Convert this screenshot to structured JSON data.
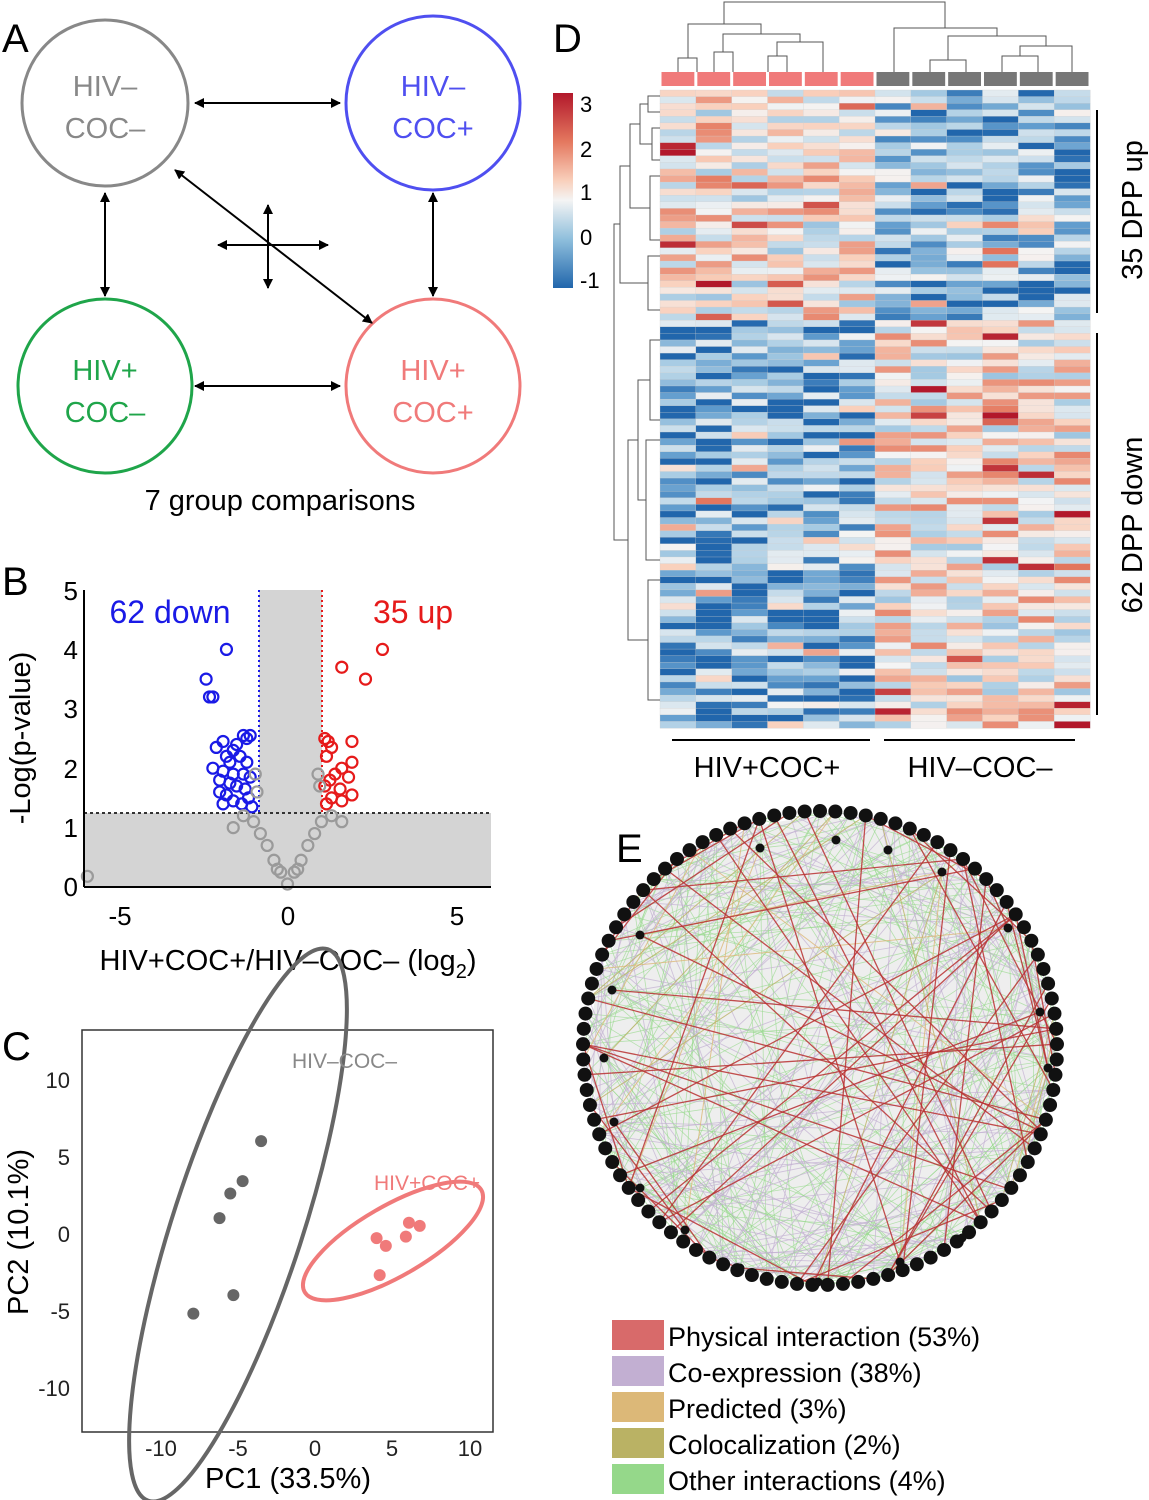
{
  "panels": {
    "A": {
      "label": "A",
      "groups": [
        {
          "line1": "HIV–",
          "line2": "COC–",
          "color": "#888888"
        },
        {
          "line1": "HIV–",
          "line2": "COC+",
          "color": "#4f4ff0"
        },
        {
          "line1": "HIV+",
          "line2": "COC–",
          "color": "#1fa54a"
        },
        {
          "line1": "HIV+",
          "line2": "COC+",
          "color": "#f07a7a"
        }
      ],
      "caption": "7 group comparisons"
    },
    "B": {
      "label": "B",
      "down_label": "62 down",
      "up_label": "35 up",
      "down_color": "#1a1ae6",
      "up_color": "#e61a1a",
      "ns_color": "#9a9a9a",
      "ylabel": "-Log(p-value)",
      "xlabel_main": "HIV+COC+/HIV–COC– (log",
      "xlabel_sub": "2",
      "xlabel_end": ")",
      "x_ticks": [
        "-5",
        "0",
        "5"
      ],
      "y_ticks": [
        "0",
        "1",
        "2",
        "3",
        "4",
        "5"
      ]
    },
    "C": {
      "label": "C",
      "xlabel": "PC1 (33.5%)",
      "ylabel": "PC2 (10.1%)",
      "x_ticks": [
        "-10",
        "-5",
        "0",
        "5",
        "10"
      ],
      "y_ticks": [
        "10",
        "5",
        "0",
        "-5",
        "-10"
      ],
      "group_labels": [
        {
          "text": "HIV–COC–",
          "color": "#888888"
        },
        {
          "text": "HIV+COC+",
          "color": "#f07a7a"
        }
      ]
    },
    "D": {
      "label": "D",
      "scale_ticks": [
        "3",
        "2",
        "1",
        "0",
        "-1"
      ],
      "row_group_up": "35 DPP up",
      "row_group_down": "62 DPP down",
      "col_group_left": "HIV+COC+",
      "col_group_right": "HIV–COC–",
      "col_colors": [
        "#f07a7a",
        "#777777"
      ]
    },
    "E": {
      "label": "E",
      "legend": [
        {
          "label": "Physical interaction (53%)",
          "color": "#d86a6a"
        },
        {
          "label": "Co-expression (38%)",
          "color": "#c2afd2"
        },
        {
          "label": "Predicted (3%)",
          "color": "#dcb878"
        },
        {
          "label": "Colocalization (2%)",
          "color": "#bab264"
        },
        {
          "label": "Other interactions (4%)",
          "color": "#95d88a"
        }
      ]
    }
  },
  "chart_data": [
    {
      "type": "scatter",
      "panel": "B",
      "xlabel": "HIV+COC+/HIV–COC– (log2)",
      "ylabel": "-Log(p-value)",
      "xlim": [
        -6,
        6
      ],
      "ylim": [
        0,
        5
      ],
      "x_ticks": [
        -5,
        0,
        5
      ],
      "y_ticks": [
        0,
        1,
        2,
        3,
        4,
        5
      ],
      "fold_change_threshold": 1,
      "p_threshold": 1.3,
      "annotations": [
        "62 down",
        "35 up"
      ],
      "series": [
        {
          "points": [
            [
              -1.8,
              4.0
            ],
            [
              -2.4,
              3.5
            ],
            [
              -2.3,
              3.2
            ],
            [
              -2.2,
              3.2
            ],
            [
              -1.1,
              2.55
            ],
            [
              -1.3,
              2.55
            ],
            [
              -1.2,
              2.5
            ],
            [
              -1.5,
              2.4
            ],
            [
              -1.9,
              2.45
            ],
            [
              -1.6,
              2.3
            ],
            [
              -1.4,
              2.2
            ],
            [
              -1.8,
              2.2
            ],
            [
              -2.1,
              2.35
            ],
            [
              -1.7,
              2.1
            ],
            [
              -1.2,
              2.1
            ],
            [
              -2.2,
              2.0
            ],
            [
              -1.9,
              1.95
            ],
            [
              -1.6,
              1.9
            ],
            [
              -1.3,
              1.9
            ],
            [
              -1.1,
              1.85
            ],
            [
              -2.0,
              1.8
            ],
            [
              -1.7,
              1.75
            ],
            [
              -1.5,
              1.7
            ],
            [
              -1.25,
              1.65
            ],
            [
              -2.0,
              1.6
            ],
            [
              -1.8,
              1.55
            ],
            [
              -1.15,
              1.5
            ],
            [
              -1.6,
              1.45
            ],
            [
              -1.9,
              1.4
            ],
            [
              -1.35,
              1.4
            ],
            [
              -1.05,
              1.35
            ]
          ]
        },
        {
          "points": [
            [
              2.8,
              4.0
            ],
            [
              1.6,
              3.7
            ],
            [
              2.3,
              3.5
            ],
            [
              1.1,
              2.5
            ],
            [
              1.2,
              2.45
            ],
            [
              1.9,
              2.45
            ],
            [
              1.3,
              2.35
            ],
            [
              1.15,
              2.2
            ],
            [
              1.9,
              2.1
            ],
            [
              1.6,
              2.0
            ],
            [
              1.4,
              1.9
            ],
            [
              1.8,
              1.85
            ],
            [
              1.25,
              1.8
            ],
            [
              1.1,
              1.7
            ],
            [
              1.55,
              1.65
            ],
            [
              1.9,
              1.55
            ],
            [
              1.3,
              1.5
            ],
            [
              1.6,
              1.45
            ],
            [
              1.15,
              1.4
            ]
          ]
        },
        {
          "points": [
            [
              -5.9,
              0.18
            ],
            [
              -1.3,
              1.2
            ],
            [
              -1.0,
              1.1
            ],
            [
              -0.8,
              0.9
            ],
            [
              -0.6,
              0.7
            ],
            [
              -0.4,
              0.45
            ],
            [
              -0.2,
              0.25
            ],
            [
              0.0,
              0.05
            ],
            [
              0.2,
              0.25
            ],
            [
              0.4,
              0.45
            ],
            [
              0.6,
              0.7
            ],
            [
              0.8,
              0.9
            ],
            [
              1.0,
              1.1
            ],
            [
              1.3,
              1.2
            ],
            [
              -0.95,
              1.9
            ],
            [
              0.9,
              1.9
            ],
            [
              0.95,
              1.7
            ],
            [
              -0.9,
              1.6
            ],
            [
              1.6,
              1.1
            ],
            [
              -1.6,
              1.0
            ],
            [
              0.3,
              0.3
            ],
            [
              -0.3,
              0.3
            ]
          ]
        }
      ]
    },
    {
      "type": "scatter",
      "panel": "C",
      "xlabel": "PC1 (33.5%)",
      "ylabel": "PC2 (10.1%)",
      "xlim": [
        -15,
        15
      ],
      "ylim": [
        -12,
        13
      ],
      "x_ticks": [
        -10,
        -5,
        0,
        5,
        10
      ],
      "y_ticks": [
        -10,
        -5,
        0,
        5,
        10
      ],
      "series": [
        {
          "name": "HIV–COC–",
          "points": [
            [
              -3.5,
              5.9
            ],
            [
              -4.7,
              3.3
            ],
            [
              -5.5,
              2.5
            ],
            [
              -6.2,
              0.9
            ],
            [
              -5.3,
              -4.1
            ],
            [
              -7.9,
              -5.3
            ]
          ]
        },
        {
          "name": "HIV+COC+",
          "points": [
            [
              4.0,
              -0.4
            ],
            [
              4.6,
              -0.9
            ],
            [
              6.1,
              0.6
            ],
            [
              6.8,
              0.4
            ],
            [
              5.9,
              -0.3
            ],
            [
              4.2,
              -2.8
            ]
          ]
        }
      ]
    },
    {
      "type": "heatmap",
      "panel": "D",
      "color_scale": [
        -1,
        3
      ],
      "rows_up": 35,
      "rows_down": 62,
      "columns": 12,
      "column_groups": [
        "HIV+COC+",
        "HIV+COC+",
        "HIV+COC+",
        "HIV+COC+",
        "HIV+COC+",
        "HIV+COC+",
        "HIV–COC–",
        "HIV–COC–",
        "HIV–COC–",
        "HIV–COC–",
        "HIV–COC–",
        "HIV–COC–"
      ]
    }
  ]
}
